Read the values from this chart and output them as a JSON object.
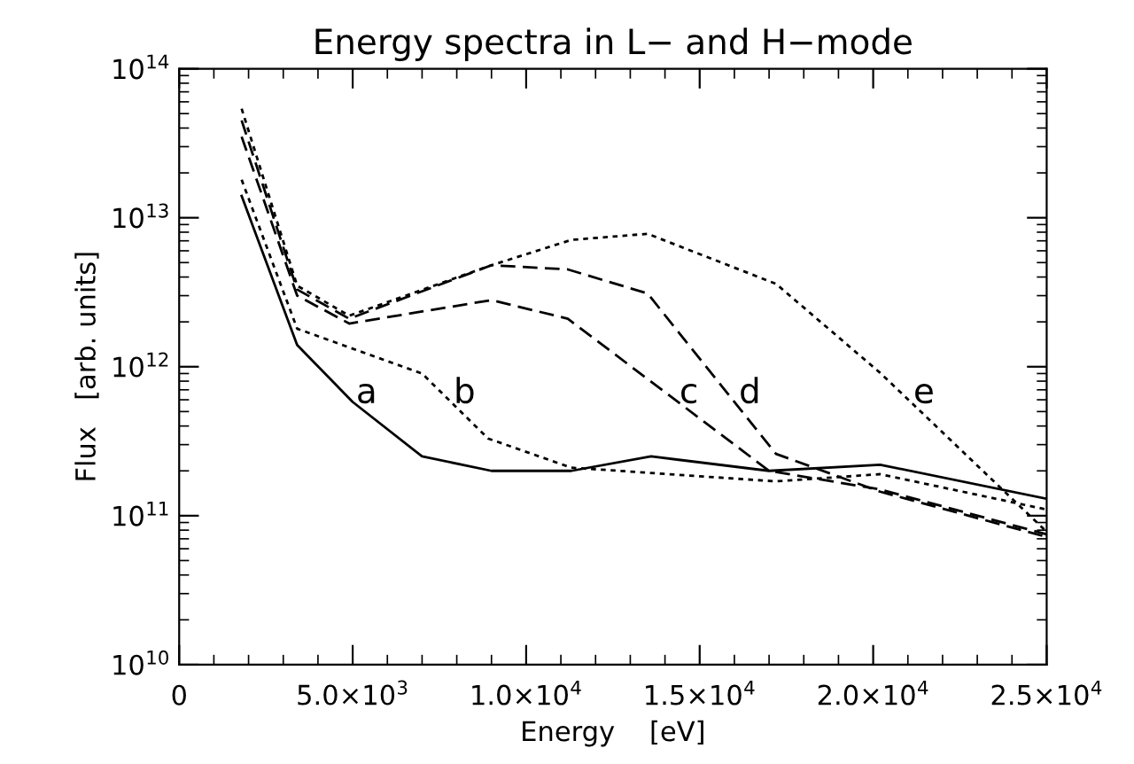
{
  "chart_data": {
    "type": "line",
    "title": "Energy spectra in L− and H−mode",
    "xlabel": "Energy    [eV]",
    "ylabel": "Flux   [arb. units]",
    "log": "y",
    "grid": false,
    "legend": false,
    "marker": "none",
    "xlim": [
      0,
      25000
    ],
    "xticks": [
      {
        "value": 0,
        "label": "0"
      },
      {
        "value": 5000,
        "label": "5.0×10$^{3}$"
      },
      {
        "value": 10000,
        "label": "1.0×10$^{4}$"
      },
      {
        "value": 15000,
        "label": "1.5×10$^{4}$"
      },
      {
        "value": 20000,
        "label": "2.0×10$^{4}$"
      },
      {
        "value": 25000,
        "label": "2.5×10$^{4}$"
      }
    ],
    "ylim": [
      10000000000.0,
      100000000000000.0
    ],
    "yticks": [
      {
        "value": 10000000000.0,
        "label": "10$^{10}$"
      },
      {
        "value": 100000000000.0,
        "label": "10$^{11}$"
      },
      {
        "value": 1000000000000.0,
        "label": "10$^{12}$"
      },
      {
        "value": 10000000000000.0,
        "label": "10$^{13}$"
      },
      {
        "value": 100000000000000.0,
        "label": "10$^{14}$"
      }
    ],
    "series": [
      {
        "name": "a",
        "color": "#000000",
        "line_style": "solid",
        "x": [
          1800,
          3400,
          5000,
          7000,
          9000,
          11300,
          13600,
          17000,
          20200,
          25000
        ],
        "values": [
          14000000000000.0,
          1400000000000.0,
          580000000000.0,
          250000000000.0,
          200000000000.0,
          200000000000.0,
          250000000000.0,
          200000000000.0,
          220000000000.0,
          130000000000.0
        ]
      },
      {
        "name": "b",
        "color": "#000000",
        "line_style": "dotted",
        "x": [
          1800,
          3400,
          7000,
          8900,
          11300,
          12700,
          17200,
          20200,
          25000
        ],
        "values": [
          18000000000000.0,
          1800000000000.0,
          900000000000.0,
          330000000000.0,
          210000000000.0,
          200000000000.0,
          170000000000.0,
          190000000000.0,
          110000000000.0
        ]
      },
      {
        "name": "c",
        "color": "#000000",
        "line_style": "dashed",
        "x": [
          1800,
          3400,
          4900,
          9000,
          11200,
          17000,
          20200,
          25000
        ],
        "values": [
          35000000000000.0,
          3000000000000.0,
          1950000000000.0,
          2800000000000.0,
          2100000000000.0,
          200000000000.0,
          150000000000.0,
          75000000000.0
        ]
      },
      {
        "name": "d",
        "color": "#000000",
        "line_style": "dashed",
        "x": [
          1800,
          3400,
          4900,
          9000,
          11200,
          13500,
          17200,
          20200,
          25000
        ],
        "values": [
          45000000000000.0,
          3300000000000.0,
          2100000000000.0,
          4800000000000.0,
          4500000000000.0,
          3100000000000.0,
          260000000000.0,
          145000000000.0,
          72000000000.0
        ]
      },
      {
        "name": "e",
        "color": "#000000",
        "line_style": "dotted",
        "x": [
          1800,
          3400,
          4900,
          9000,
          11300,
          13500,
          17200,
          20200,
          25000
        ],
        "values": [
          54000000000000.0,
          3500000000000.0,
          2200000000000.0,
          4800000000000.0,
          7100000000000.0,
          7800000000000.0,
          3600000000000.0,
          910000000000.0,
          78000000000.0
        ]
      }
    ]
  }
}
